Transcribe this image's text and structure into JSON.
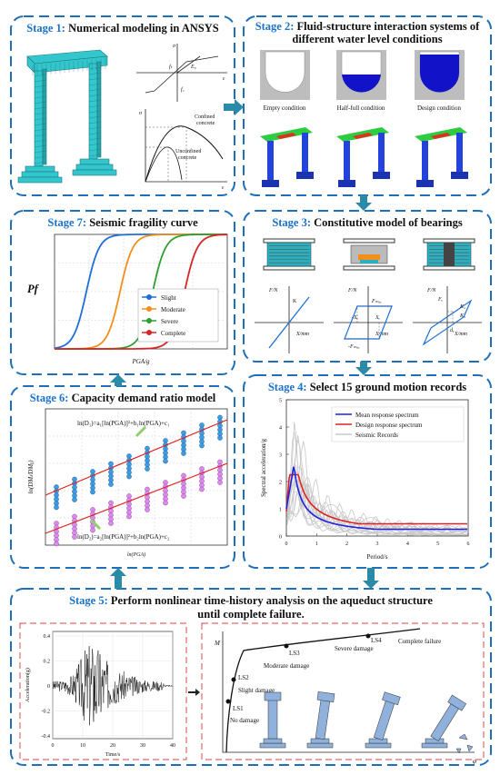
{
  "stage1": {
    "label": "Stage 1:",
    "title": " Numerical modeling in ANSYS",
    "labels": {
      "sigma": "σ",
      "eps": "ε",
      "ft": "fₜ",
      "fc": "f꜀",
      "e0": "E₀",
      "sigma2": "σ",
      "eps2": "ε",
      "confined": "Confined",
      "confined2": "concrete",
      "unconfined": "Unconfined",
      "unconfined2": "concrete"
    }
  },
  "stage2": {
    "label": "Stage 2:",
    "title": [
      " Fluid-structure interaction systems of",
      "different water level conditions"
    ],
    "conditions": [
      "Empty condition",
      "Half-full condition",
      "Design condition"
    ]
  },
  "stage3": {
    "label": "Stage 3:",
    "title": " Constitutive model of bearings",
    "plots": [
      {
        "y": "F/N",
        "x": "X/mm",
        "marks": [
          "K"
        ]
      },
      {
        "y": "F/N",
        "x": "X/mm",
        "marks": [
          "Fₘₐₓ",
          "-Fₘₐₓ",
          "Xᵧ",
          "-Xᵧ"
        ]
      },
      {
        "y": "F/N",
        "x": "X/mm",
        "marks": [
          "Fᵧ",
          "K₂",
          "K₁",
          "dᵧ"
        ]
      }
    ]
  },
  "stage4": {
    "label": "Stage 4:",
    "title": " Select 15 ground motion records",
    "ylabel": "Spectral acceleration/g",
    "xlabel": "Period/s",
    "yticks": [
      "0",
      "1",
      "2",
      "3",
      "4",
      "5"
    ],
    "xticks": [
      "0",
      "1",
      "2",
      "3",
      "4",
      "5",
      "6"
    ],
    "legend": [
      "Mean response spectrum",
      "Design response spectrum",
      "Seismic Records"
    ]
  },
  "stage5": {
    "label": "Stage 5:",
    "title": [
      " Perform nonlinear time-history analysis on the aqueduct structure",
      "until complete failure."
    ],
    "history": {
      "ylabel": "Acceleration(g)",
      "xlabel": "Time/s",
      "yticks": [
        "0.4",
        "0.2",
        "0",
        "-0.2",
        "-0.4"
      ],
      "xticks": [
        "0",
        "10",
        "20",
        "30",
        "40"
      ]
    },
    "capacity": {
      "y": "M",
      "x": "φ",
      "states": [
        "LS1",
        "No damage",
        "LS2",
        "Slight damage",
        "LS3",
        "Moderate damage",
        "LS4",
        "Severe damage",
        "Complete failure"
      ]
    }
  },
  "stage6": {
    "label": "Stage 6:",
    "title": " Capacity demand ratio model",
    "eq1": "ln(D₁)=a₁[ln(PGA)]²+b₁ln(PGA)+c₁",
    "eq2": "ln(D₂)=a₂[ln(PGA)]²+b₂ln(PGA)+c₂",
    "ylabel": "ln(DMₗ/DMᵦ)",
    "xlabel": "ln(PGA)"
  },
  "stage7": {
    "label": "Stage 7:",
    "title": " Seismic fragility curve",
    "ylabel": "Pf",
    "xlabel": "PGA/g",
    "legend": [
      "Slight",
      "Moderate",
      "Severe",
      "Complete"
    ]
  }
}
